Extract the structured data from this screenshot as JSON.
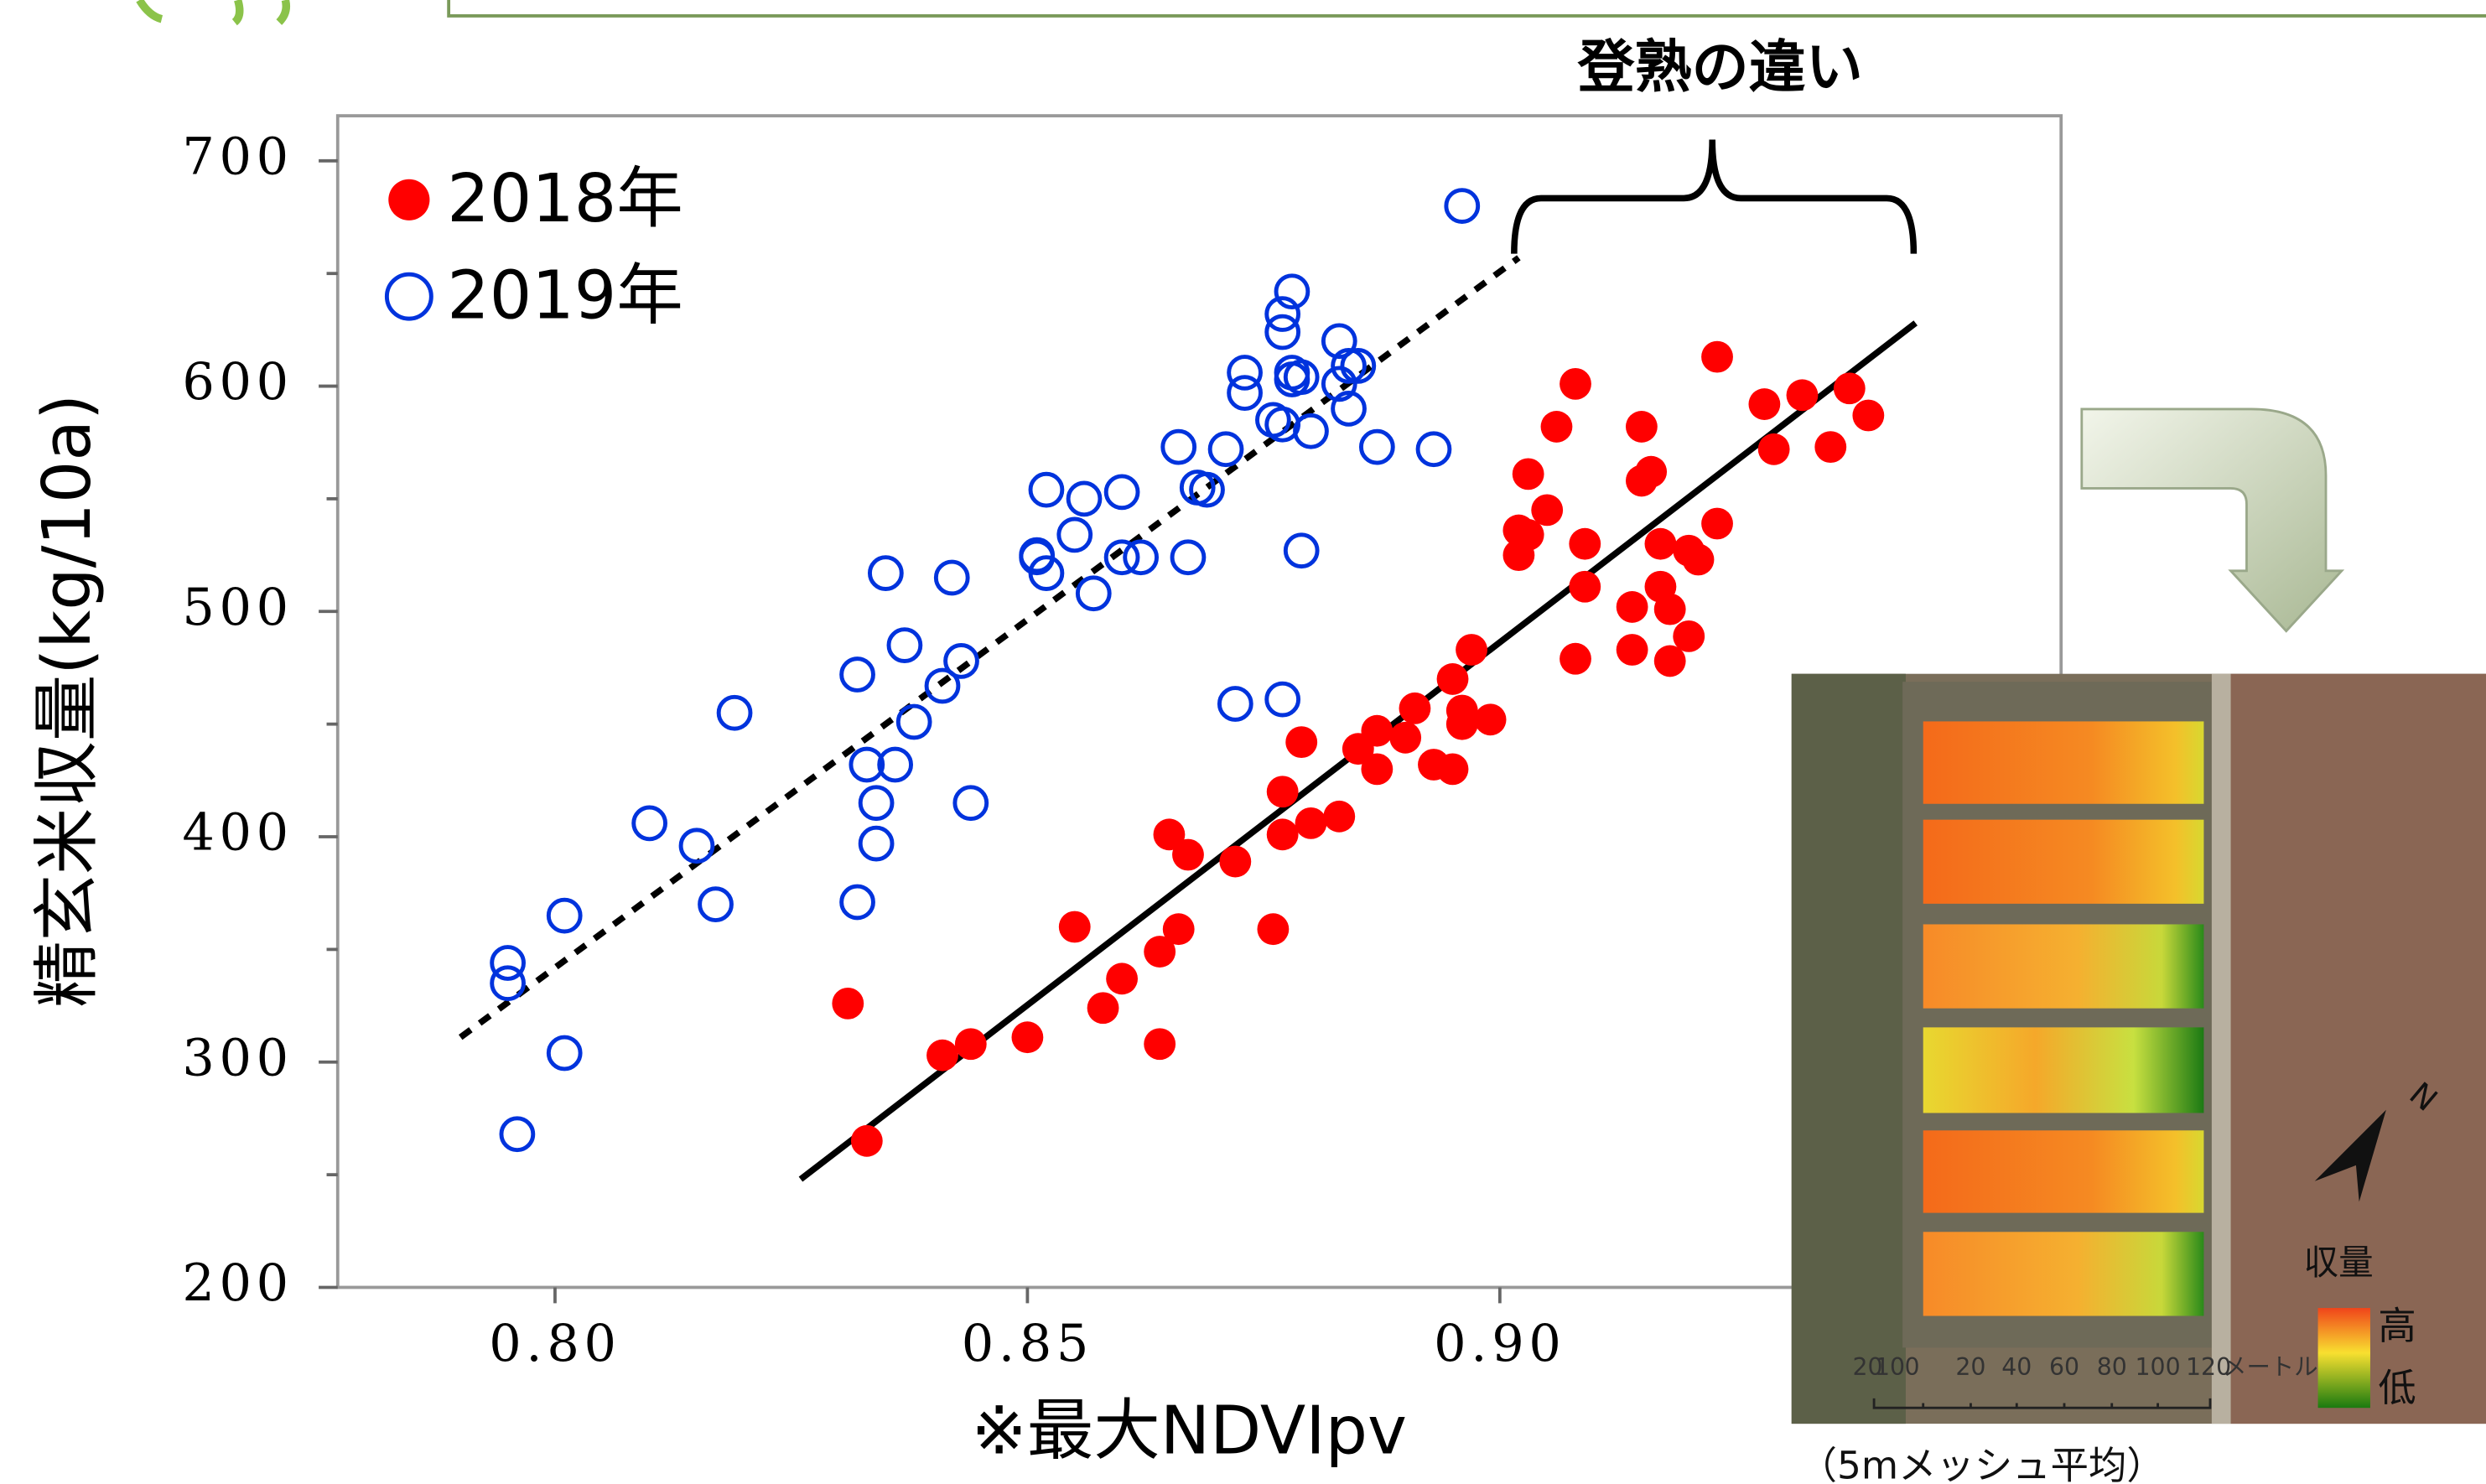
{
  "chart_data": {
    "type": "scatter",
    "annotation": "登熟の違い",
    "x_label": "※最大NDVIpv",
    "y_label": "精玄米収量(kg/10a)",
    "xlim": [
      0.777,
      0.9594
    ],
    "ylim": [
      200,
      720
    ],
    "xticks": [
      {
        "value": 0.8,
        "label": "0.80"
      },
      {
        "value": 0.85,
        "label": "0.85"
      },
      {
        "value": 0.9,
        "label": "0.90"
      }
    ],
    "yticks": [
      200,
      300,
      400,
      500,
      600,
      700
    ],
    "yminorticks": [
      250,
      350,
      450,
      550,
      650
    ],
    "legend": "upper left",
    "series": [
      {
        "name": "2018年",
        "color": "#ff0000",
        "marker": "filled",
        "x": [
          0.923,
          0.908,
          0.928,
          0.932,
          0.937,
          0.939,
          0.906,
          0.915,
          0.935,
          0.929,
          0.903,
          0.916,
          0.915,
          0.905,
          0.902,
          0.903,
          0.923,
          0.909,
          0.902,
          0.917,
          0.92,
          0.921,
          0.909,
          0.917,
          0.914,
          0.918,
          0.92,
          0.908,
          0.914,
          0.918,
          0.897,
          0.895,
          0.891,
          0.887,
          0.896,
          0.899,
          0.896,
          0.89,
          0.885,
          0.893,
          0.895,
          0.887,
          0.879,
          0.877,
          0.883,
          0.88,
          0.877,
          0.865,
          0.867,
          0.872,
          0.855,
          0.866,
          0.876,
          0.86,
          0.864,
          0.858,
          0.85,
          0.844,
          0.841,
          0.864,
          0.831,
          0.833
        ],
        "values": [
          613,
          601,
          592,
          596,
          599,
          587,
          582,
          582,
          573,
          572,
          561,
          562,
          558,
          545,
          536,
          534,
          539,
          530,
          525,
          530,
          527,
          523,
          511,
          511,
          502,
          501,
          489,
          479,
          483,
          478,
          483,
          470,
          457,
          447,
          456,
          452,
          450,
          444,
          439,
          432,
          430,
          430,
          442,
          420,
          409,
          406,
          401,
          401,
          392,
          389,
          360,
          359,
          359,
          337,
          349,
          324,
          311,
          308,
          303,
          308,
          326,
          265
        ]
      },
      {
        "name": "2019年",
        "color": "#0033dd",
        "marker": "open",
        "x": [
          0.896,
          0.878,
          0.877,
          0.877,
          0.883,
          0.878,
          0.879,
          0.884,
          0.885,
          0.873,
          0.873,
          0.883,
          0.878,
          0.876,
          0.877,
          0.884,
          0.88,
          0.871,
          0.866,
          0.887,
          0.893,
          0.868,
          0.869,
          0.852,
          0.856,
          0.86,
          0.855,
          0.851,
          0.851,
          0.852,
          0.86,
          0.862,
          0.867,
          0.879,
          0.835,
          0.842,
          0.857,
          0.837,
          0.843,
          0.841,
          0.832,
          0.838,
          0.819,
          0.872,
          0.877,
          0.833,
          0.836,
          0.834,
          0.844,
          0.81,
          0.815,
          0.834,
          0.817,
          0.832,
          0.795,
          0.795,
          0.801,
          0.801,
          0.796
        ],
        "values": [
          680,
          642,
          632,
          624,
          620,
          606,
          604,
          609,
          609,
          606,
          597,
          601,
          603,
          585,
          583,
          590,
          580,
          572,
          573,
          573,
          572,
          555,
          554,
          554,
          550,
          553,
          534,
          525,
          524,
          517,
          524,
          524,
          524,
          527,
          517,
          515,
          508,
          485,
          478,
          467,
          472,
          451,
          455,
          459,
          461,
          432,
          432,
          415,
          415,
          406,
          396,
          397,
          370,
          371,
          344,
          335,
          365,
          304,
          268
        ]
      }
    ],
    "trendlines": [
      {
        "x": [
          0.79,
          0.902
        ],
        "y": [
          311,
          657
        ],
        "dashed": true
      },
      {
        "x": [
          0.826,
          0.944
        ],
        "y": [
          248,
          628
        ],
        "dashed": false
      }
    ]
  },
  "inset": {
    "legend_title": "収量",
    "high": "高",
    "low": "低",
    "scale_labels": [
      "20",
      "10",
      "0",
      "20",
      "40",
      "60",
      "80",
      "100",
      "120"
    ],
    "scale_unit": "メートル",
    "north": "N",
    "caption": "（5mメッシュ平均）"
  }
}
